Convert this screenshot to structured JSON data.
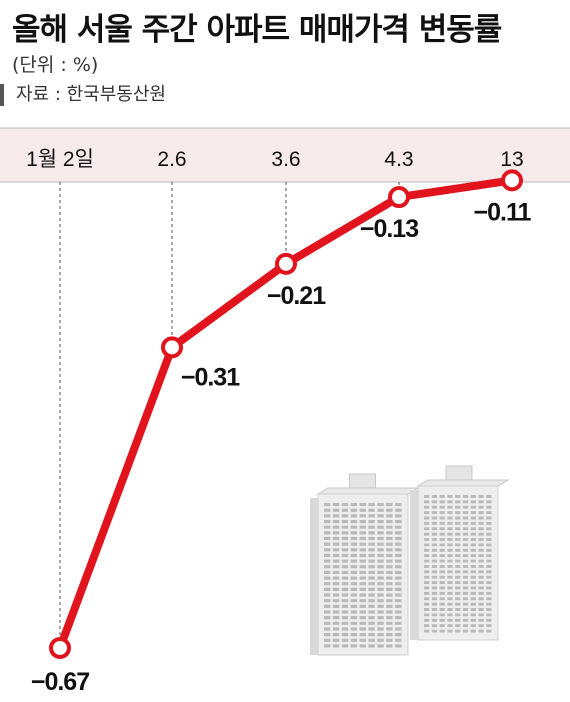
{
  "header": {
    "title": "올해 서울 주간 아파트 매매가격 변동률",
    "unit": "(단위 : %)",
    "source": "자료 : 한국부동산원"
  },
  "colors": {
    "line": "#e1141e",
    "band": "#f6eaea",
    "band_border": "#b8b8b8",
    "guide": "#555555",
    "text": "#111111"
  },
  "illustration": {
    "name": "apartment-buildings"
  },
  "chart_data": {
    "type": "line",
    "categories": [
      "1월 2일",
      "2.6",
      "3.6",
      "4.3",
      "13"
    ],
    "series": [
      {
        "values": [
          -0.67,
          -0.31,
          -0.21,
          -0.13,
          -0.11
        ]
      }
    ],
    "data_labels": [
      "−0.67",
      "−0.31",
      "−0.21",
      "−0.13",
      "−0.11"
    ],
    "ylim": [
      -0.7,
      -0.1
    ],
    "grid": false,
    "legend": "none"
  }
}
